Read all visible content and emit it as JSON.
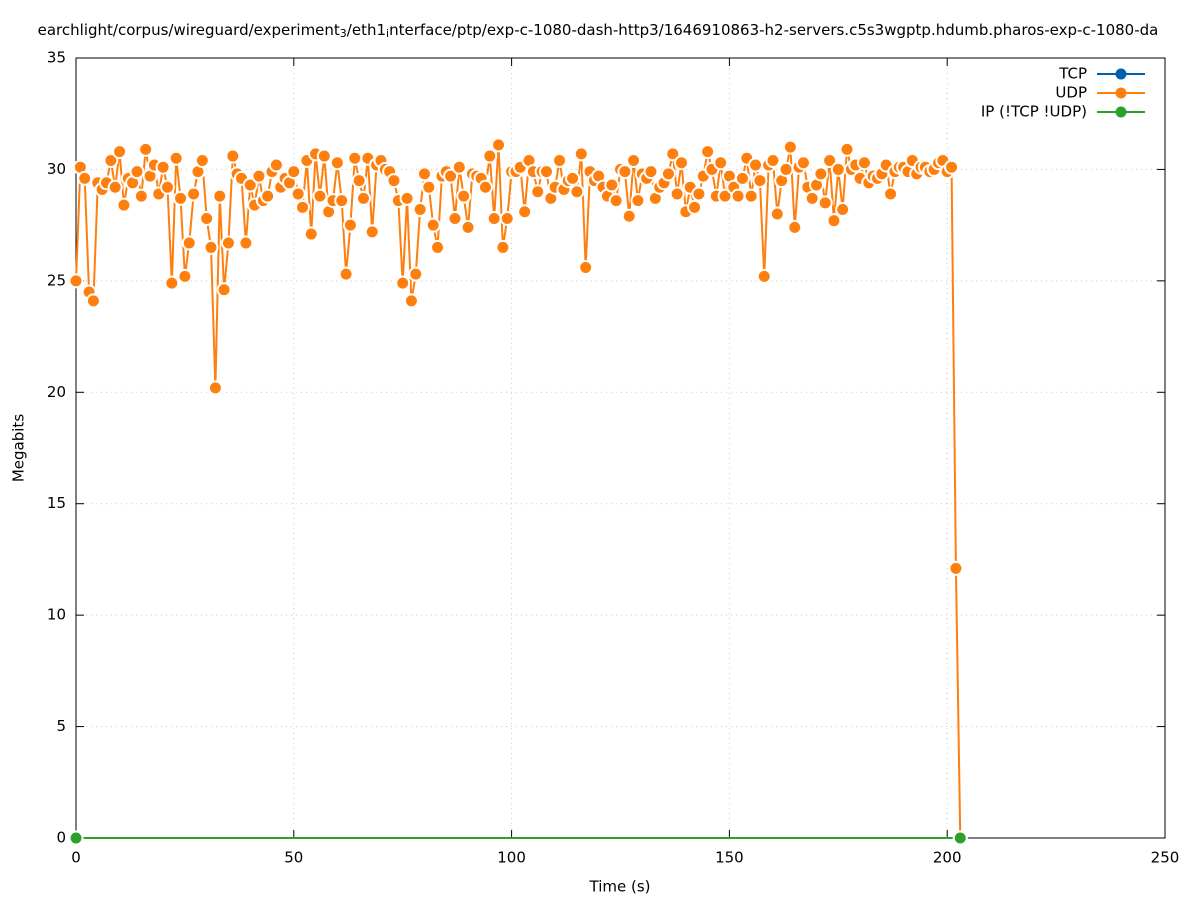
{
  "chart_data": {
    "type": "line",
    "title_parts": [
      "earchlight/corpus/wireguard/experiment",
      "3",
      "/eth1",
      "i",
      "nterface/ptp/exp-c-1080-dash-http3/1646910863-h2-servers.c5s3wgptp.hdumb.pharos-exp-c-1080-da"
    ],
    "x_label": "Time (s)",
    "y_label": "Megabits",
    "xlim": [
      0,
      250
    ],
    "xticks": [
      0,
      50,
      100,
      150,
      200,
      250
    ],
    "ylim": [
      0,
      35
    ],
    "yticks": [
      0,
      5,
      10,
      15,
      20,
      25,
      30,
      35
    ],
    "grid": true,
    "legend": "top-right",
    "series": [
      {
        "name": "TCP",
        "color": "#0060ad",
        "x": [],
        "values": []
      },
      {
        "name": "UDP",
        "color": "#ff7f0e",
        "x": [
          0,
          1,
          2,
          3,
          4,
          5,
          6,
          7,
          8,
          9,
          10,
          11,
          12,
          13,
          14,
          15,
          16,
          17,
          18,
          19,
          20,
          21,
          22,
          23,
          24,
          25,
          26,
          27,
          28,
          29,
          30,
          31,
          32,
          33,
          34,
          35,
          36,
          37,
          38,
          39,
          40,
          41,
          42,
          43,
          44,
          45,
          46,
          47,
          48,
          49,
          50,
          51,
          52,
          53,
          54,
          55,
          56,
          57,
          58,
          59,
          60,
          61,
          62,
          63,
          64,
          65,
          66,
          67,
          68,
          69,
          70,
          71,
          72,
          73,
          74,
          75,
          76,
          77,
          78,
          79,
          80,
          81,
          82,
          83,
          84,
          85,
          86,
          87,
          88,
          89,
          90,
          91,
          92,
          93,
          94,
          95,
          96,
          97,
          98,
          99,
          100,
          101,
          102,
          103,
          104,
          105,
          106,
          107,
          108,
          109,
          110,
          111,
          112,
          113,
          114,
          115,
          116,
          117,
          118,
          119,
          120,
          121,
          122,
          123,
          124,
          125,
          126,
          127,
          128,
          129,
          130,
          131,
          132,
          133,
          134,
          135,
          136,
          137,
          138,
          139,
          140,
          141,
          142,
          143,
          144,
          145,
          146,
          147,
          148,
          149,
          150,
          151,
          152,
          153,
          154,
          155,
          156,
          157,
          158,
          159,
          160,
          161,
          162,
          163,
          164,
          165,
          166,
          167,
          168,
          169,
          170,
          171,
          172,
          173,
          174,
          175,
          176,
          177,
          178,
          179,
          180,
          181,
          182,
          183,
          184,
          185,
          186,
          187,
          188,
          189,
          190,
          191,
          192,
          193,
          194,
          195,
          196,
          197,
          198,
          199,
          200,
          201,
          202,
          203
        ],
        "values": [
          25.0,
          30.1,
          29.6,
          24.5,
          24.1,
          29.4,
          29.1,
          29.4,
          30.4,
          29.2,
          30.8,
          28.4,
          29.6,
          29.4,
          29.9,
          28.8,
          30.9,
          29.7,
          30.2,
          28.9,
          30.1,
          29.2,
          24.9,
          30.5,
          28.7,
          25.2,
          26.7,
          28.9,
          29.9,
          30.4,
          27.8,
          26.5,
          20.2,
          28.8,
          24.6,
          26.7,
          30.6,
          29.8,
          29.6,
          26.7,
          29.3,
          28.4,
          29.7,
          28.6,
          28.8,
          29.9,
          30.2,
          29.2,
          29.6,
          29.4,
          29.9,
          28.9,
          28.3,
          30.4,
          27.1,
          30.7,
          28.8,
          30.6,
          28.1,
          28.6,
          30.3,
          28.6,
          25.3,
          27.5,
          30.5,
          29.5,
          28.7,
          30.5,
          27.2,
          30.2,
          30.4,
          30.0,
          29.9,
          29.5,
          28.6,
          24.9,
          28.7,
          24.1,
          25.3,
          28.2,
          29.8,
          29.2,
          27.5,
          26.5,
          29.7,
          29.9,
          29.7,
          27.8,
          30.1,
          28.8,
          27.4,
          29.8,
          29.7,
          29.6,
          29.2,
          30.6,
          27.8,
          31.1,
          26.5,
          27.8,
          29.9,
          29.9,
          30.1,
          28.1,
          30.4,
          29.9,
          29.0,
          29.9,
          29.9,
          28.7,
          29.2,
          30.4,
          29.1,
          29.5,
          29.6,
          29.0,
          30.7,
          25.6,
          29.9,
          29.5,
          29.7,
          29.2,
          28.8,
          29.3,
          28.6,
          30.0,
          29.9,
          27.9,
          30.4,
          28.6,
          29.8,
          29.6,
          29.9,
          28.7,
          29.2,
          29.4,
          29.8,
          30.7,
          28.9,
          30.3,
          28.1,
          29.2,
          28.3,
          28.9,
          29.7,
          30.8,
          30.0,
          28.8,
          30.3,
          28.8,
          29.7,
          29.2,
          28.8,
          29.6,
          30.5,
          28.8,
          30.2,
          29.5,
          25.2,
          30.2,
          30.4,
          28.0,
          29.5,
          30.0,
          31.0,
          27.4,
          30.1,
          30.3,
          29.2,
          28.7,
          29.3,
          29.8,
          28.5,
          30.4,
          27.7,
          30.0,
          28.2,
          30.9,
          30.0,
          30.2,
          29.6,
          30.3,
          29.4,
          29.7,
          29.6,
          29.8,
          30.2,
          28.9,
          29.9,
          30.1,
          30.1,
          29.9,
          30.4,
          29.8,
          30.1,
          30.1,
          29.9,
          30.0,
          30.3,
          30.4,
          29.9,
          30.1,
          12.1,
          0
        ]
      },
      {
        "name": "IP (!TCP  !UDP)",
        "color": "#2ca02c",
        "x": [
          0,
          203
        ],
        "values": [
          0,
          0
        ]
      }
    ]
  }
}
